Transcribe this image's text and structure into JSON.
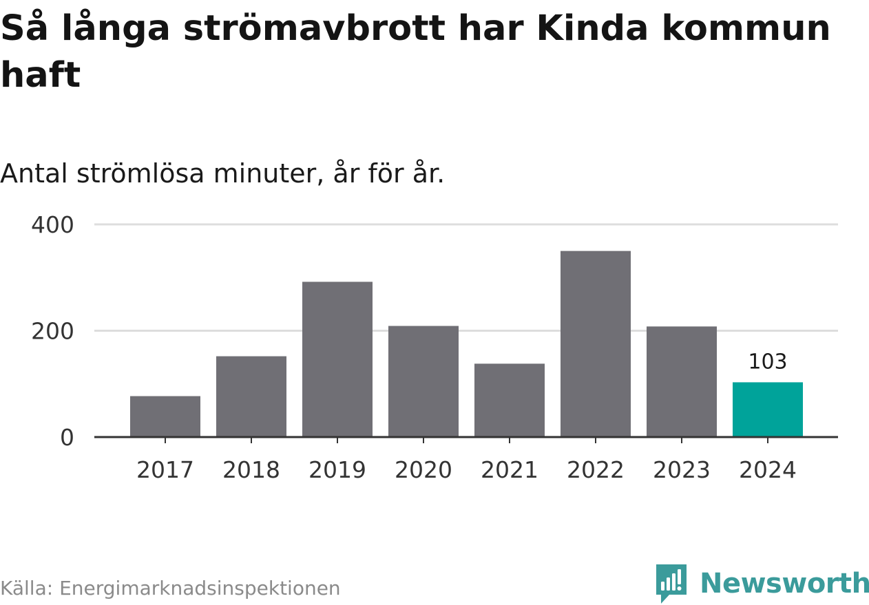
{
  "chart_data": {
    "type": "bar",
    "title": "Så långa strömavbrott har Kinda kommun haft",
    "subtitle": "Antal strömlösa minuter, år för år.",
    "categories": [
      "2017",
      "2018",
      "2019",
      "2020",
      "2021",
      "2022",
      "2023",
      "2024"
    ],
    "values": [
      77,
      152,
      292,
      209,
      138,
      350,
      208,
      103
    ],
    "highlight_index": 7,
    "data_labels": [
      {
        "index": 7,
        "text": "103"
      }
    ],
    "yticks": [
      0,
      200,
      400
    ],
    "ylim": [
      0,
      400
    ],
    "xlabel": "",
    "ylabel": "",
    "grid": true,
    "colors": {
      "bar": "#706f75",
      "highlight": "#00a39a",
      "grid": "#dddddd",
      "axis": "#333333"
    }
  },
  "footer": {
    "source": "Källa: Energimarknadsinspektionen",
    "brand": "Newsworthy",
    "brand_icon": "newsworthy-logo-icon",
    "brand_color": "#3b9b9b"
  }
}
